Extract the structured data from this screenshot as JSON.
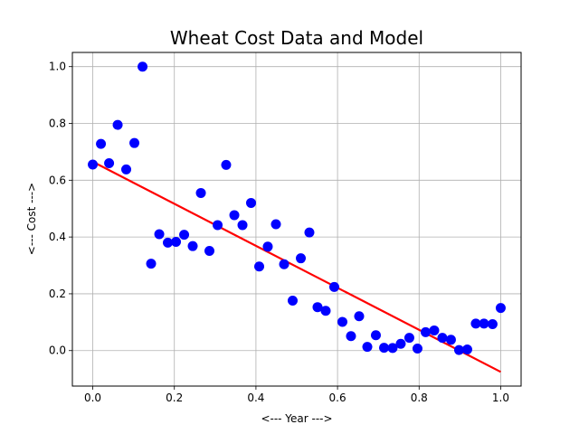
{
  "chart_data": {
    "type": "scatter",
    "title": "Wheat Cost Data and Model",
    "xlabel": "<--- Year --->",
    "ylabel": "<--- Cost --->",
    "xlim": [
      -0.05,
      1.05
    ],
    "ylim": [
      -0.125,
      1.05
    ],
    "xticks": [
      0.0,
      0.2,
      0.4,
      0.6,
      0.8,
      1.0
    ],
    "yticks": [
      0.0,
      0.2,
      0.4,
      0.6,
      0.8,
      1.0
    ],
    "xtick_labels": [
      "0.0",
      "0.2",
      "0.4",
      "0.6",
      "0.8",
      "1.0"
    ],
    "ytick_labels": [
      "0.0",
      "0.2",
      "0.4",
      "0.6",
      "0.8",
      "1.0"
    ],
    "grid": true,
    "series": [
      {
        "kind": "scatter",
        "color": "#0000ff",
        "x": [
          0.0,
          0.02,
          0.04,
          0.061,
          0.082,
          0.102,
          0.122,
          0.143,
          0.163,
          0.184,
          0.204,
          0.224,
          0.245,
          0.265,
          0.286,
          0.306,
          0.327,
          0.347,
          0.367,
          0.388,
          0.408,
          0.429,
          0.449,
          0.469,
          0.49,
          0.51,
          0.531,
          0.551,
          0.571,
          0.592,
          0.612,
          0.633,
          0.653,
          0.673,
          0.694,
          0.714,
          0.735,
          0.755,
          0.776,
          0.796,
          0.816,
          0.837,
          0.857,
          0.878,
          0.898,
          0.918,
          0.939,
          0.959,
          0.98,
          1.0
        ],
        "y": [
          0.655,
          0.728,
          0.66,
          0.795,
          0.638,
          0.731,
          1.0,
          0.306,
          0.41,
          0.38,
          0.383,
          0.408,
          0.368,
          0.555,
          0.351,
          0.442,
          0.654,
          0.477,
          0.442,
          0.52,
          0.296,
          0.366,
          0.445,
          0.304,
          0.176,
          0.325,
          0.416,
          0.153,
          0.14,
          0.224,
          0.101,
          0.051,
          0.121,
          0.013,
          0.054,
          0.01,
          0.009,
          0.024,
          0.045,
          0.007,
          0.065,
          0.071,
          0.045,
          0.038,
          0.002,
          0.004,
          0.095,
          0.095,
          0.093,
          0.15
        ]
      },
      {
        "kind": "line",
        "color": "#ff0000",
        "x": [
          0.0,
          1.0
        ],
        "y": [
          0.665,
          -0.075
        ]
      }
    ]
  }
}
